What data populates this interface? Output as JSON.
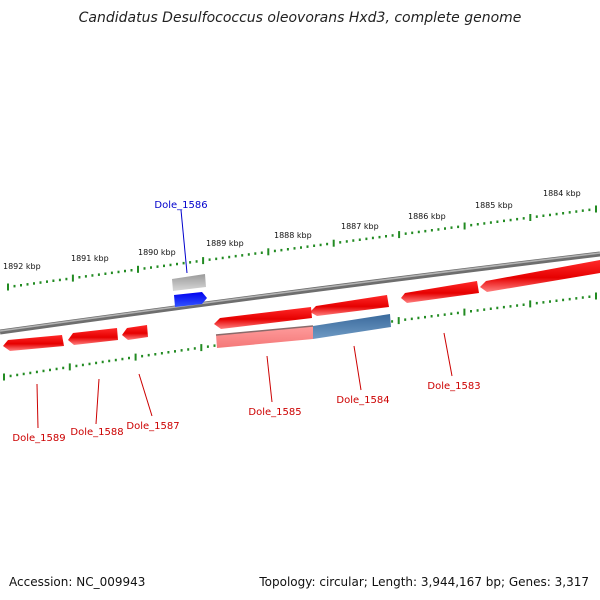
{
  "title": "Candidatus Desulfococcus oleovorans Hxd3, complete genome",
  "footer": {
    "accession": "Accession: NC_009943",
    "summary": "Topology: circular; Length: 3,944,167 bp; Genes: 3,317"
  },
  "colors": {
    "background": "#ffffff",
    "backbone": "#808080",
    "tick": "#228b22",
    "gene_forward": "#ff0000",
    "gene_reverse": "#ff0000",
    "gene_highlight": "#4f7fae",
    "gene_selected": "#0000ff",
    "gene_shadow": "#b8b8b8",
    "label_default": "#cc0000",
    "label_selected": "#0000cc"
  },
  "scale": {
    "labels": [
      "1892 kbp",
      "1891 kbp",
      "1890 kbp",
      "1889 kbp",
      "1888 kbp",
      "1887 kbp",
      "1886 kbp",
      "1885 kbp",
      "1884 kbp"
    ]
  },
  "genes": [
    {
      "id": "Dole_1589",
      "label": "Dole_1589",
      "strand": "reverse",
      "state": "normal"
    },
    {
      "id": "Dole_1588",
      "label": "Dole_1588",
      "strand": "reverse",
      "state": "normal"
    },
    {
      "id": "Dole_1587",
      "label": "Dole_1587",
      "strand": "reverse",
      "state": "normal"
    },
    {
      "id": "Dole_1586",
      "label": "Dole_1586",
      "strand": "forward",
      "state": "selected"
    },
    {
      "id": "Dole_1585",
      "label": "Dole_1585",
      "strand": "reverse",
      "state": "normal"
    },
    {
      "id": "Dole_1584",
      "label": "Dole_1584",
      "strand": "reverse",
      "state": "highlight"
    },
    {
      "id": "Dole_1583",
      "label": "Dole_1583",
      "strand": "reverse",
      "state": "normal"
    }
  ]
}
